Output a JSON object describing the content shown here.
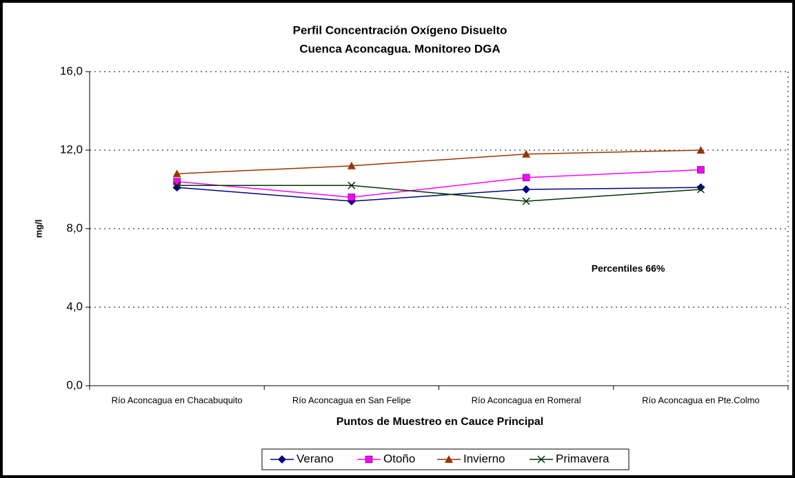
{
  "chart_data": {
    "type": "line",
    "title": "Perfil Concentración Oxígeno Disuelto",
    "subtitle": "Cuenca Aconcagua. Monitoreo DGA",
    "x_label": "Puntos de Muestreo en Cauce Principal",
    "y_label": "mg/l",
    "annotation": "Percentiles 66%",
    "categories": [
      "Río Aconcagua en Chacabuquito",
      "Río Aconcagua en San Felipe",
      "Río Aconcagua en Romeral",
      "Río Aconcagua en Pte.Colmo"
    ],
    "series": [
      {
        "name": "Verano",
        "color": "#000080",
        "marker": "diamond",
        "values": [
          10.1,
          9.4,
          10.0,
          10.1
        ]
      },
      {
        "name": "Otoño",
        "color": "#ff00ff",
        "marker": "square",
        "values": [
          10.4,
          9.6,
          10.6,
          11.0
        ]
      },
      {
        "name": "Invierno",
        "color": "#993300",
        "marker": "triangle",
        "values": [
          10.8,
          11.2,
          11.8,
          12.0
        ]
      },
      {
        "name": "Primavera",
        "color": "#003300",
        "marker": "x",
        "values": [
          10.2,
          10.2,
          9.4,
          10.0
        ]
      }
    ],
    "ylim": [
      0,
      16
    ],
    "yticks": [
      {
        "value": 0,
        "label": "0,0"
      },
      {
        "value": 4,
        "label": "4,0"
      },
      {
        "value": 8,
        "label": "8,0"
      },
      {
        "value": 12,
        "label": "12,0"
      },
      {
        "value": 16,
        "label": "16,0"
      }
    ],
    "grid": true,
    "legend": "bottom"
  }
}
